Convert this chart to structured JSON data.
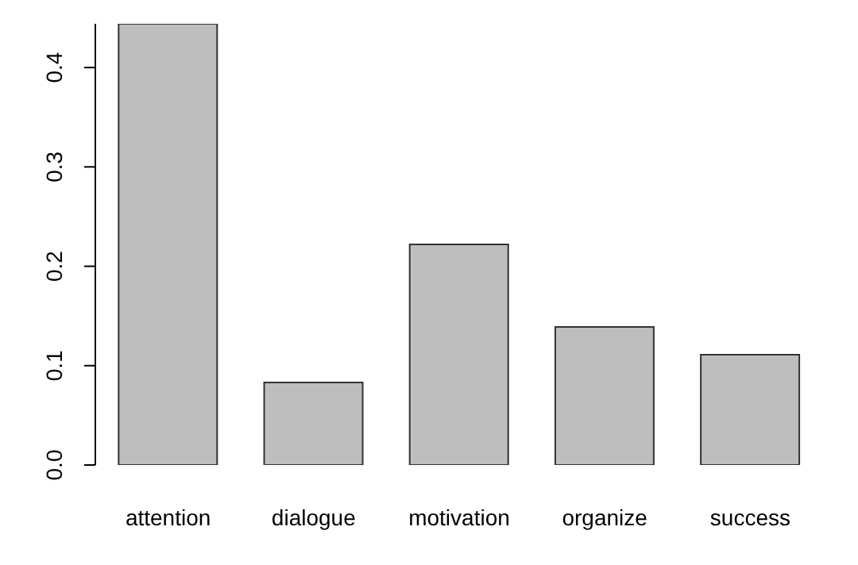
{
  "chart_data": {
    "type": "bar",
    "categories": [
      "attention",
      "dialogue",
      "motivation",
      "organize",
      "success"
    ],
    "values": [
      0.444,
      0.083,
      0.222,
      0.139,
      0.111
    ],
    "color": "#bebebe",
    "ylim": [
      0,
      0.444
    ],
    "yticks": [
      {
        "value": 0,
        "label": "0.0"
      },
      {
        "value": 0.1,
        "label": "0.1"
      },
      {
        "value": 0.2,
        "label": "0.2"
      },
      {
        "value": 0.3,
        "label": "0.3"
      },
      {
        "value": 0.4,
        "label": "0.4"
      }
    ],
    "grid": false
  }
}
